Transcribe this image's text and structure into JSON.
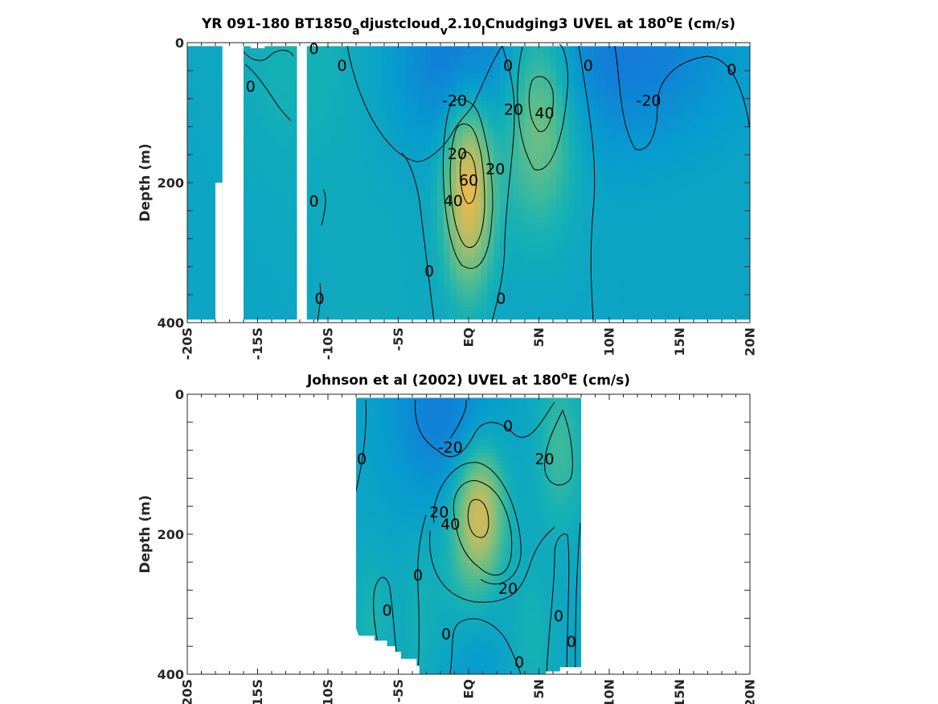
{
  "chart_data": [
    {
      "type": "heatmap",
      "title": {
        "p1": "YR 091-180 BT1850",
        "s1": "a",
        "p2": "djustcloud",
        "s2": "v",
        "p3": "2.10",
        "s3": "l",
        "p4": "Cnudging3 UVEL at 180",
        "sup": "o",
        "p5": "E (cm/s)"
      },
      "ylabel": "Depth (m)",
      "xlim": [
        -20,
        20
      ],
      "ylim": [
        0,
        400
      ],
      "y_reversed": true,
      "x_ticks": [
        {
          "value": -20,
          "label": "-20S"
        },
        {
          "value": -15,
          "label": "-15S"
        },
        {
          "value": -10,
          "label": "-10S"
        },
        {
          "value": -5,
          "label": "-5S"
        },
        {
          "value": 0,
          "label": "EQ"
        },
        {
          "value": 5,
          "label": "5N"
        },
        {
          "value": 10,
          "label": "10N"
        },
        {
          "value": 15,
          "label": "15N"
        },
        {
          "value": 20,
          "label": "20N"
        }
      ],
      "y_ticks": [
        {
          "value": 0,
          "label": "0"
        },
        {
          "value": 200,
          "label": "200"
        },
        {
          "value": 400,
          "label": "400"
        }
      ],
      "data_extent": {
        "x": [
          -20,
          20
        ],
        "depth": [
          5,
          395
        ]
      },
      "gaps": [
        {
          "x": [
            -17.5,
            -16.0
          ],
          "depth": [
            0,
            400
          ]
        },
        {
          "x": [
            -12.2,
            -11.5
          ],
          "depth": [
            0,
            400
          ]
        },
        {
          "x": [
            -15.5,
            -14.5
          ],
          "depth": [
            0,
            8
          ]
        },
        {
          "x": [
            -18.0,
            -17.5
          ],
          "depth": [
            200,
            400
          ]
        }
      ],
      "features": [
        {
          "x": 0.0,
          "depth": 210,
          "value": 65,
          "sx": 1.2,
          "sd": 95
        },
        {
          "x": 5.0,
          "depth": 95,
          "value": 42,
          "sx": 1.9,
          "sd": 110
        },
        {
          "x": -0.8,
          "depth": 25,
          "value": -26,
          "sx": 3.0,
          "sd": 85
        },
        {
          "x": 8.5,
          "depth": 20,
          "value": -18,
          "sx": 4.5,
          "sd": 95
        },
        {
          "x": 14.0,
          "depth": 15,
          "value": -14,
          "sx": 4.0,
          "sd": 80
        },
        {
          "x": -12.0,
          "depth": 20,
          "value": 10,
          "sx": 3.5,
          "sd": 130
        },
        {
          "x": -7.0,
          "depth": 360,
          "value": 5,
          "sx": 3.0,
          "sd": 120
        }
      ],
      "contour_labels": [
        {
          "x": -11.0,
          "depth": 8,
          "text": "0"
        },
        {
          "x": -15.5,
          "depth": 62,
          "text": "0"
        },
        {
          "x": -9.0,
          "depth": 32,
          "text": "0"
        },
        {
          "x": 2.8,
          "depth": 32,
          "text": "0"
        },
        {
          "x": 8.5,
          "depth": 32,
          "text": "0"
        },
        {
          "x": 18.7,
          "depth": 38,
          "text": "0"
        },
        {
          "x": -1.0,
          "depth": 82,
          "text": "-20"
        },
        {
          "x": 3.2,
          "depth": 95,
          "text": "20"
        },
        {
          "x": 5.4,
          "depth": 100,
          "text": "40"
        },
        {
          "x": 12.8,
          "depth": 82,
          "text": "-20"
        },
        {
          "x": -0.8,
          "depth": 158,
          "text": "20"
        },
        {
          "x": 1.9,
          "depth": 180,
          "text": "20"
        },
        {
          "x": 0.0,
          "depth": 196,
          "text": "60"
        },
        {
          "x": -1.1,
          "depth": 225,
          "text": "40"
        },
        {
          "x": -11.0,
          "depth": 226,
          "text": "0"
        },
        {
          "x": -2.8,
          "depth": 326,
          "text": "0"
        },
        {
          "x": 2.3,
          "depth": 365,
          "text": "0"
        },
        {
          "x": -10.6,
          "depth": 365,
          "text": "0"
        }
      ]
    },
    {
      "type": "heatmap",
      "title": {
        "p1": "Johnson et al (2002) UVEL at 180",
        "sup": "o",
        "p2": "E (cm/s)"
      },
      "ylabel": "Depth (m)",
      "xlim": [
        -20,
        20
      ],
      "ylim": [
        0,
        400
      ],
      "y_reversed": true,
      "x_ticks": [
        {
          "value": -20,
          "label": "-20S"
        },
        {
          "value": -15,
          "label": "-15S"
        },
        {
          "value": -10,
          "label": "-10S"
        },
        {
          "value": -5,
          "label": "-5S"
        },
        {
          "value": 0,
          "label": "EQ"
        },
        {
          "value": 5,
          "label": "5N"
        },
        {
          "value": 10,
          "label": "10N"
        },
        {
          "value": 15,
          "label": "15N"
        },
        {
          "value": 20,
          "label": "20N"
        }
      ],
      "y_ticks": [
        {
          "value": 0,
          "label": "0"
        },
        {
          "value": 200,
          "label": "200"
        },
        {
          "value": 400,
          "label": "400"
        }
      ],
      "data_extent": {
        "x": [
          -8,
          8
        ],
        "depth": [
          5,
          400
        ]
      },
      "bottom_edge": [
        [
          -8,
          335
        ],
        [
          -7.8,
          345
        ],
        [
          -6.7,
          345
        ],
        [
          -6.7,
          352
        ],
        [
          -5.8,
          352
        ],
        [
          -5.8,
          360
        ],
        [
          -5.2,
          360
        ],
        [
          -5.2,
          368
        ],
        [
          -4.8,
          368
        ],
        [
          -4.8,
          378
        ],
        [
          -3.7,
          378
        ],
        [
          -3.7,
          388
        ],
        [
          -3.5,
          388
        ],
        [
          -3.5,
          400
        ],
        [
          5.5,
          400
        ],
        [
          5.5,
          396
        ],
        [
          6.5,
          396
        ],
        [
          6.5,
          390
        ],
        [
          8,
          390
        ]
      ],
      "features": [
        {
          "x": 0.8,
          "depth": 165,
          "value": 52,
          "sx": 1.2,
          "sd": 65
        },
        {
          "x": 0.0,
          "depth": 250,
          "value": 14,
          "sx": 1.6,
          "sd": 90
        },
        {
          "x": -2.0,
          "depth": 30,
          "value": -24,
          "sx": 2.5,
          "sd": 90
        },
        {
          "x": 6.5,
          "depth": 80,
          "value": 20,
          "sx": 1.2,
          "sd": 80
        },
        {
          "x": -6.8,
          "depth": 330,
          "value": 12,
          "sx": 1.0,
          "sd": 70
        },
        {
          "x": -3.5,
          "depth": 320,
          "value": 8,
          "sx": 1.0,
          "sd": 90
        },
        {
          "x": 4.5,
          "depth": 350,
          "value": 10,
          "sx": 1.2,
          "sd": 80
        },
        {
          "x": 0.5,
          "depth": 380,
          "value": -10,
          "sx": 1.6,
          "sd": 80
        }
      ],
      "contour_labels": [
        {
          "x": 2.8,
          "depth": 45,
          "text": "0"
        },
        {
          "x": -7.6,
          "depth": 92,
          "text": "0"
        },
        {
          "x": -1.3,
          "depth": 75,
          "text": "-20"
        },
        {
          "x": 5.4,
          "depth": 92,
          "text": "20"
        },
        {
          "x": -2.1,
          "depth": 168,
          "text": "20"
        },
        {
          "x": -1.3,
          "depth": 185,
          "text": "40"
        },
        {
          "x": -3.6,
          "depth": 258,
          "text": "0"
        },
        {
          "x": 2.8,
          "depth": 277,
          "text": "20"
        },
        {
          "x": -5.8,
          "depth": 308,
          "text": "0"
        },
        {
          "x": 6.4,
          "depth": 316,
          "text": "0"
        },
        {
          "x": -1.6,
          "depth": 342,
          "text": "0"
        },
        {
          "x": 7.3,
          "depth": 353,
          "text": "0"
        },
        {
          "x": 3.6,
          "depth": 382,
          "text": "0"
        }
      ]
    }
  ]
}
